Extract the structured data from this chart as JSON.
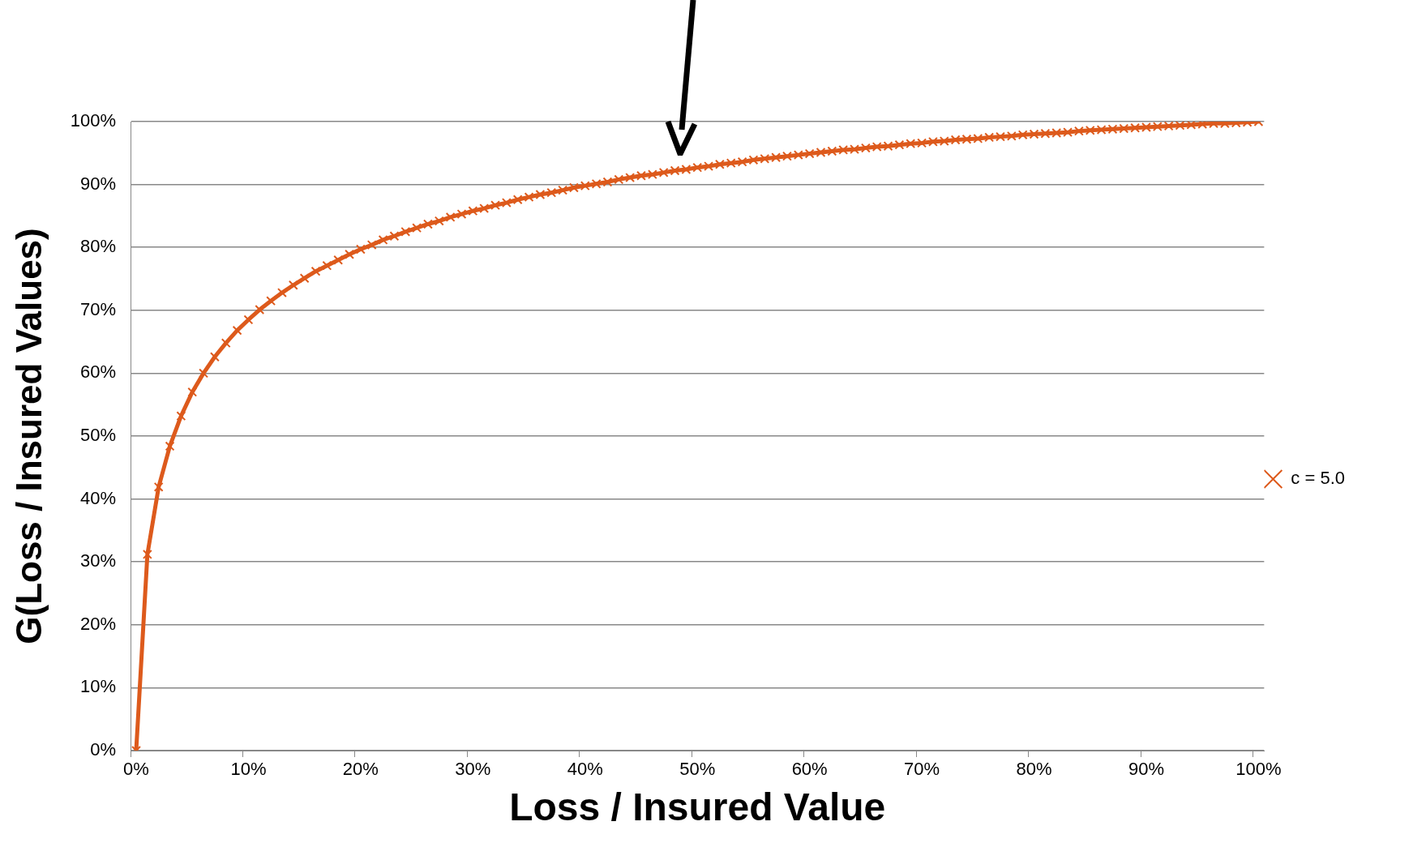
{
  "chart_data": {
    "type": "line",
    "xlabel": "Loss / Insured Value",
    "ylabel": "G(Loss / Insured Values)",
    "categories": [
      "0%",
      null,
      null,
      null,
      null,
      null,
      null,
      null,
      null,
      null,
      "10%",
      null,
      null,
      null,
      null,
      null,
      null,
      null,
      null,
      null,
      "20%",
      null,
      null,
      null,
      null,
      null,
      null,
      null,
      null,
      null,
      "30%",
      null,
      null,
      null,
      null,
      null,
      null,
      null,
      null,
      null,
      "40%",
      null,
      null,
      null,
      null,
      null,
      null,
      null,
      null,
      null,
      "50%",
      null,
      null,
      null,
      null,
      null,
      null,
      null,
      null,
      null,
      "60%",
      null,
      null,
      null,
      null,
      null,
      null,
      null,
      null,
      null,
      "70%",
      null,
      null,
      null,
      null,
      null,
      null,
      null,
      null,
      null,
      "80%",
      null,
      null,
      null,
      null,
      null,
      null,
      null,
      null,
      null,
      "90%",
      null,
      null,
      null,
      null,
      null,
      null,
      null,
      null,
      null,
      "100%"
    ],
    "series": [
      {
        "name": "c = 5.0",
        "color": "#dd5a1c",
        "values": [
          0,
          31.2,
          41.9,
          48.4,
          53.2,
          57.0,
          60.0,
          62.6,
          64.8,
          66.8,
          68.5,
          70.1,
          71.5,
          72.8,
          74.0,
          75.1,
          76.2,
          77.1,
          78.0,
          78.9,
          79.7,
          80.4,
          81.2,
          81.8,
          82.5,
          83.1,
          83.7,
          84.2,
          84.8,
          85.3,
          85.8,
          86.2,
          86.7,
          87.1,
          87.6,
          88.0,
          88.4,
          88.7,
          89.1,
          89.5,
          89.8,
          90.1,
          90.4,
          90.8,
          91.1,
          91.4,
          91.6,
          91.9,
          92.2,
          92.4,
          92.7,
          92.9,
          93.2,
          93.4,
          93.6,
          93.9,
          94.1,
          94.3,
          94.5,
          94.7,
          94.9,
          95.1,
          95.3,
          95.5,
          95.6,
          95.8,
          96.0,
          96.1,
          96.3,
          96.5,
          96.6,
          96.8,
          96.9,
          97.1,
          97.2,
          97.3,
          97.5,
          97.6,
          97.7,
          97.9,
          98.0,
          98.1,
          98.2,
          98.3,
          98.5,
          98.6,
          98.7,
          98.8,
          98.9,
          99.0,
          99.1,
          99.2,
          99.3,
          99.4,
          99.5,
          99.6,
          99.7,
          99.7,
          99.8,
          99.9,
          100
        ]
      }
    ],
    "ylim": [
      0,
      100
    ],
    "yticks": [
      {
        "value": 0,
        "label": "0%"
      },
      {
        "value": 10,
        "label": "10%"
      },
      {
        "value": 20,
        "label": "20%"
      },
      {
        "value": 30,
        "label": "30%"
      },
      {
        "value": 40,
        "label": "40%"
      },
      {
        "value": 50,
        "label": "50%"
      },
      {
        "value": 60,
        "label": "60%"
      },
      {
        "value": 70,
        "label": "70%"
      },
      {
        "value": 80,
        "label": "80%"
      },
      {
        "value": 90,
        "label": "90%"
      },
      {
        "value": 100,
        "label": "100%"
      }
    ],
    "grid": "y",
    "legend": "right",
    "marker": "cross",
    "line_style": "solid"
  }
}
